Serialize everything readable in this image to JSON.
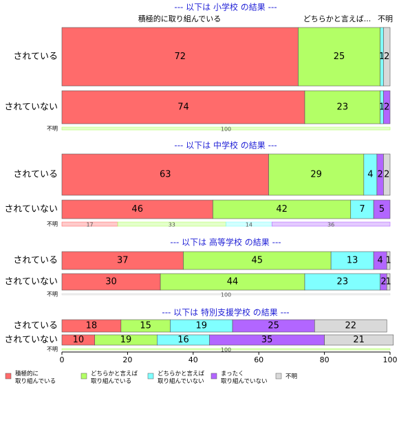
{
  "chart_data": {
    "type": "bar",
    "stacked": true,
    "series": [
      {
        "name": "積極的に\n取り組んでいる",
        "color": "#ff6b6b"
      },
      {
        "name": "どちらかと言えば\n取り組んでいる",
        "color": "#b3ff66"
      },
      {
        "name": "どちらかと言えば\n取り組んでいない",
        "color": "#80ffff"
      },
      {
        "name": "まったく\n取り組んでいない",
        "color": "#b266ff"
      },
      {
        "name": "不明",
        "color": "#d9d9d9"
      }
    ],
    "panels": [
      {
        "title": "--- 以下は 小学校 の結果 ---",
        "header_labels": [
          "積極的に取り組んでいる",
          "どちらかと言えば...",
          "不明"
        ],
        "rows": [
          {
            "label": "されている",
            "values": [
              72,
              25,
              1,
              0,
              2
            ]
          },
          {
            "label": "されていない",
            "values": [
              74,
              23,
              1,
              2,
              0
            ]
          },
          {
            "label": "不明",
            "values": [
              0,
              100,
              0,
              0,
              0
            ]
          }
        ]
      },
      {
        "title": "--- 以下は 中学校 の結果 ---",
        "rows": [
          {
            "label": "されている",
            "values": [
              63,
              29,
              4,
              2,
              2
            ]
          },
          {
            "label": "されていない",
            "values": [
              46,
              42,
              7,
              5,
              0
            ]
          },
          {
            "label": "不明",
            "values": [
              17,
              33,
              14,
              36,
              0
            ]
          }
        ]
      },
      {
        "title": "--- 以下は 高等学校 の結果 ---",
        "rows": [
          {
            "label": "されている",
            "values": [
              37,
              45,
              13,
              4,
              1
            ]
          },
          {
            "label": "されていない",
            "values": [
              30,
              44,
              23,
              2,
              1
            ]
          },
          {
            "label": "不明",
            "values": [
              0,
              0,
              0,
              0,
              100
            ]
          }
        ]
      },
      {
        "title": "--- 以下は 特別支援学校 の結果 ---",
        "rows": [
          {
            "label": "されている",
            "values": [
              18,
              15,
              19,
              25,
              22
            ]
          },
          {
            "label": "されていない",
            "values": [
              10,
              19,
              16,
              35,
              21
            ]
          },
          {
            "label": "不明",
            "values": [
              0,
              100,
              0,
              0,
              0
            ]
          }
        ]
      }
    ],
    "xlim": [
      0,
      100
    ],
    "xticks": [
      0,
      20,
      40,
      60,
      80,
      100
    ]
  }
}
